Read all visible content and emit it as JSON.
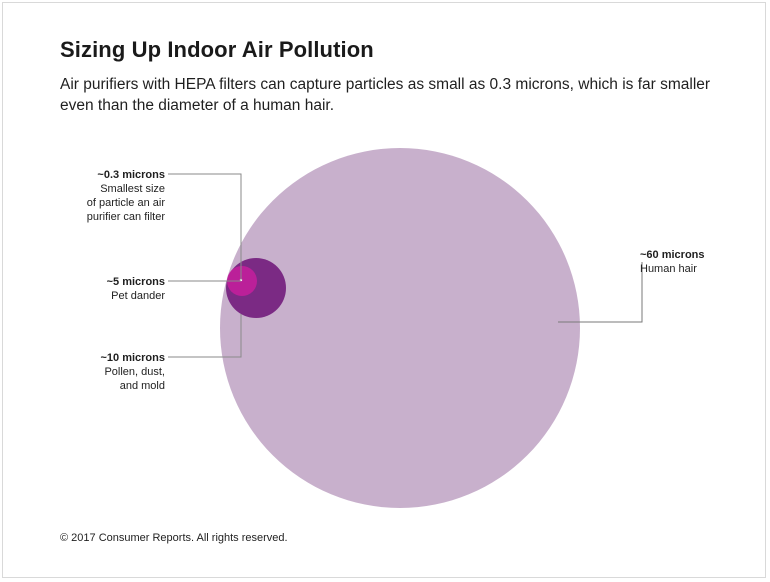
{
  "header": {
    "title": "Sizing Up Indoor Air Pollution",
    "subtitle": "Air purifiers with HEPA filters can capture particles as small as 0.3 microns, which is far smaller even than the diameter of a human hair."
  },
  "chart_data": {
    "type": "proportional-circles",
    "unit": "microns",
    "items": [
      {
        "id": "hair",
        "size_microns": 60,
        "value_label": "~60 microns",
        "description": [
          "Human hair"
        ],
        "color": "#c8b0cc"
      },
      {
        "id": "pollen",
        "size_microns": 10,
        "value_label": "~10 microns",
        "description": [
          "Pollen, dust,",
          "and mold"
        ],
        "color": "#7b2a84"
      },
      {
        "id": "dander",
        "size_microns": 5,
        "value_label": "~5 microns",
        "description": [
          "Pet dander"
        ],
        "color": "#c21f9b"
      },
      {
        "id": "hepa",
        "size_microns": 0.3,
        "value_label": "~0.3 microns",
        "description": [
          "Smallest size",
          "of particle an air",
          "purifier can filter"
        ],
        "color": "#ffffff"
      }
    ]
  },
  "footer": {
    "credit": "© 2017 Consumer Reports. All rights reserved."
  }
}
